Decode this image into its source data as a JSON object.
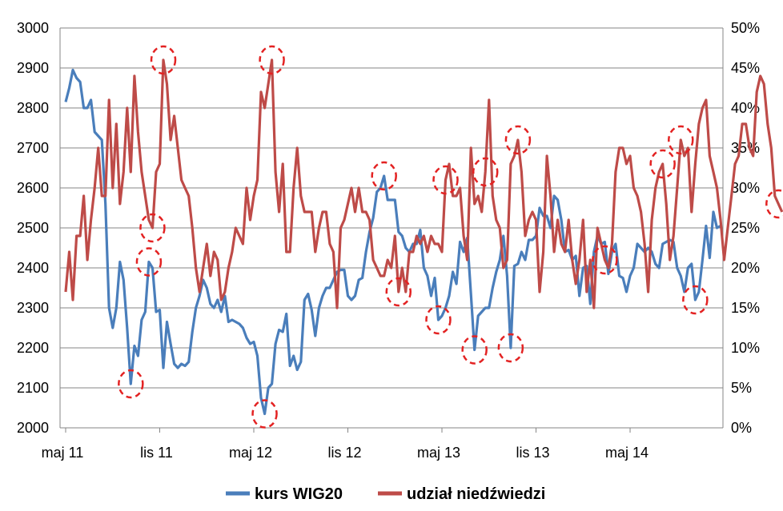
{
  "chart_data": {
    "type": "line",
    "title": "",
    "xlabel": "",
    "ylabel": "",
    "x_tick_labels": [
      "maj 11",
      "lis 11",
      "maj 12",
      "lis 12",
      "maj 13",
      "lis 13",
      "maj 14"
    ],
    "y_left": {
      "ylim": [
        2000,
        3000
      ],
      "ticks": [
        "2000",
        "2100",
        "2200",
        "2300",
        "2400",
        "2500",
        "2600",
        "2700",
        "2800",
        "2900",
        "3000"
      ]
    },
    "y_right": {
      "ylim": [
        0,
        50
      ],
      "ticks": [
        "0%",
        "5%",
        "10%",
        "15%",
        "20%",
        "25%",
        "30%",
        "35%",
        "40%",
        "45%",
        "50%"
      ]
    },
    "grid": "horizontal",
    "legend_position": "bottom",
    "colors": {
      "wig20": "#4a7ebb",
      "bears": "#be4b48",
      "markers": "#e32222",
      "grid": "#868686"
    },
    "series": [
      {
        "name": "kurs WIG20",
        "axis": "left",
        "values": [
          2815,
          2850,
          2895,
          2875,
          2865,
          2800,
          2800,
          2820,
          2740,
          2730,
          2720,
          2560,
          2300,
          2250,
          2300,
          2415,
          2370,
          2250,
          2110,
          2205,
          2180,
          2270,
          2290,
          2415,
          2400,
          2290,
          2295,
          2150,
          2265,
          2210,
          2160,
          2150,
          2160,
          2155,
          2165,
          2240,
          2300,
          2330,
          2370,
          2350,
          2310,
          2300,
          2320,
          2290,
          2330,
          2265,
          2270,
          2265,
          2260,
          2250,
          2225,
          2210,
          2215,
          2180,
          2075,
          2035,
          2100,
          2110,
          2210,
          2245,
          2240,
          2285,
          2155,
          2180,
          2145,
          2165,
          2320,
          2335,
          2295,
          2230,
          2300,
          2330,
          2350,
          2350,
          2370,
          2390,
          2395,
          2395,
          2330,
          2320,
          2330,
          2370,
          2375,
          2440,
          2490,
          2525,
          2590,
          2600,
          2630,
          2570,
          2570,
          2570,
          2490,
          2480,
          2450,
          2440,
          2460,
          2460,
          2495,
          2400,
          2380,
          2330,
          2375,
          2270,
          2280,
          2300,
          2330,
          2390,
          2360,
          2465,
          2440,
          2475,
          2335,
          2195,
          2280,
          2290,
          2300,
          2300,
          2350,
          2390,
          2420,
          2480,
          2380,
          2200,
          2405,
          2410,
          2440,
          2420,
          2470,
          2470,
          2480,
          2550,
          2530,
          2530,
          2500,
          2580,
          2570,
          2520,
          2440,
          2445,
          2420,
          2430,
          2330,
          2400,
          2405,
          2310,
          2440,
          2480,
          2460,
          2465,
          2385,
          2440,
          2460,
          2380,
          2375,
          2340,
          2380,
          2400,
          2460,
          2450,
          2440,
          2450,
          2440,
          2410,
          2400,
          2460,
          2465,
          2470,
          2465,
          2400,
          2380,
          2340,
          2400,
          2410,
          2320,
          2340,
          2420,
          2505,
          2425,
          2540,
          2500,
          2505
        ]
      },
      {
        "name": "udział niedźwiedzi",
        "axis": "right",
        "values": [
          17,
          22,
          16,
          24,
          24,
          29,
          21,
          26,
          30,
          35,
          29,
          29,
          41,
          30,
          38,
          28,
          32,
          40,
          32,
          44,
          37,
          32,
          29,
          26,
          25,
          32,
          33,
          46,
          43,
          36,
          39,
          35,
          31,
          30,
          29,
          25,
          20,
          17,
          20,
          23,
          19,
          22,
          21,
          16,
          17,
          20,
          22,
          25,
          24,
          23,
          30,
          26,
          29,
          31,
          42,
          40,
          43,
          46,
          32,
          27,
          33,
          22,
          22,
          30,
          35,
          29,
          27,
          27,
          27,
          22,
          25,
          27,
          27,
          23,
          22,
          15,
          25,
          26,
          28,
          30,
          27,
          30,
          27,
          27,
          26,
          21,
          20,
          19,
          19,
          21,
          20,
          24,
          17,
          20,
          17,
          22,
          22,
          24,
          23,
          24,
          22,
          24,
          23,
          23,
          22,
          31,
          33,
          29,
          29,
          30,
          24,
          21,
          35,
          28,
          29,
          27,
          32,
          41,
          29,
          26,
          25,
          20,
          21,
          33,
          34,
          36,
          32,
          24,
          26,
          27,
          26,
          17,
          22,
          34,
          29,
          22,
          26,
          23,
          22,
          26,
          21,
          18,
          21,
          26,
          17,
          21,
          15,
          25,
          23,
          21,
          20,
          23,
          32,
          35,
          35,
          33,
          34,
          30,
          29,
          27,
          23,
          17,
          26,
          30,
          32,
          33,
          28,
          21,
          24,
          30,
          36,
          34,
          35,
          27,
          33,
          38,
          40,
          41,
          34,
          32,
          30,
          26,
          21,
          25,
          29,
          33,
          34,
          38,
          38,
          35,
          34,
          42,
          44,
          43,
          38,
          35,
          29,
          28,
          27
        ]
      }
    ],
    "highlight_markers": [
      {
        "series": 0,
        "index": 18
      },
      {
        "series": 0,
        "index": 23
      },
      {
        "series": 0,
        "index": 55
      },
      {
        "series": 0,
        "index": 88
      },
      {
        "series": 0,
        "index": 103
      },
      {
        "series": 0,
        "index": 113
      },
      {
        "series": 0,
        "index": 123
      },
      {
        "series": 0,
        "index": 174
      },
      {
        "series": 1,
        "index": 24
      },
      {
        "series": 1,
        "index": 27
      },
      {
        "series": 1,
        "index": 57
      },
      {
        "series": 1,
        "index": 92
      },
      {
        "series": 1,
        "index": 105
      },
      {
        "series": 1,
        "index": 116
      },
      {
        "series": 1,
        "index": 125
      },
      {
        "series": 1,
        "index": 149
      },
      {
        "series": 1,
        "index": 165
      },
      {
        "series": 1,
        "index": 170
      },
      {
        "series": 1,
        "index": 197
      }
    ]
  }
}
